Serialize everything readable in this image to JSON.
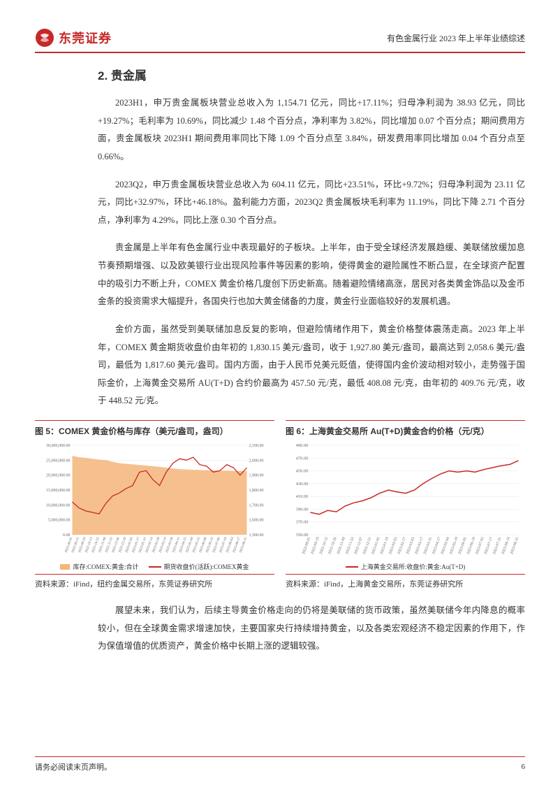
{
  "header": {
    "logo_text": "东莞证券",
    "right_text": "有色金属行业 2023 年上半年业绩综述"
  },
  "section": {
    "number": "2.",
    "title": "贵金属"
  },
  "paragraphs": {
    "p1": "2023H1，申万贵金属板块营业总收入为 1,154.71 亿元，同比+17.11%；归母净利润为 38.93 亿元，同比+19.27%；毛利率为 10.69%，同比减少 1.48 个百分点，净利率为 3.82%，同比增加 0.07 个百分点；期间费用方面，贵金属板块 2023H1 期间费用率同比下降 1.09 个百分点至 3.84%，研发费用率同比增加 0.04 个百分点至 0.66%。",
    "p2": "2023Q2，申万贵金属板块营业总收入为 604.11 亿元，同比+23.51%，环比+9.72%；归母净利润为 23.11 亿元，同比+32.97%，环比+46.18%。盈利能力方面，2023Q2 贵金属板块毛利率为 11.19%，同比下降 2.71 个百分点，净利率为 4.29%，同比上涨 0.30 个百分点。",
    "p3": "贵金属是上半年有色金属行业中表现最好的子板块。上半年，由于受全球经济发展趋缓、美联储放缓加息节奏预期增强、以及欧美银行业出现风险事件等因素的影响，使得黄金的避险属性不断凸显，在全球资产配置中的吸引力不断上升，COMEX 黄金价格几度创下历史新高。随着避险情绪高涨，居民对各类黄金饰品以及金币金条的投资需求大幅提升，各国央行也加大黄金储备的力度，黄金行业面临较好的发展机遇。",
    "p4": "金价方面，虽然受到美联储加息反复的影响，但避险情绪作用下，黄金价格整体震荡走高。2023 年上半年，COMEX 黄金期货收盘价由年初的 1,830.15 美元/盎司，收于 1,927.80 美元/盎司，最高达到 2,058.6 美元/盎司，最低为 1,817.60 美元/盎司。国内方面，由于人民币兑美元贬值，使得国内金价波动相对较小，走势强于国际金价，上海黄金交易所 AU(T+D) 合约价最高为 457.50 元/克，最低 408.08 元/克，由年初的 409.76 元/克，收于 448.52 元/克。",
    "p5": "展望未来，我们认为，后续主导黄金价格走向的仍将是美联储的货币政策，虽然美联储今年内降息的概率较小，但在全球黄金需求增速加快，主要国家央行持续增持黄金，以及各类宏观经济不稳定因素的作用下，作为保值增值的优质资产，黄金价格中长期上涨的逻辑较强。"
  },
  "chart_left": {
    "type": "combo",
    "title": "图 5：COMEX 黄金价格与库存（美元/盎司，盎司）",
    "x_labels": [
      "2022-09-01",
      "2022-09-15",
      "2022-09-29",
      "2022-10-13",
      "2022-10-25",
      "2022-11-08",
      "2022-11-22",
      "2022-12-06",
      "2022-12-20",
      "2023-01-03",
      "2023-01-17",
      "2023-01-31",
      "2023-02-14",
      "2023-02-28",
      "2023-03-14",
      "2023-03-28",
      "2023-04-11",
      "2023-04-25",
      "2023-05-09",
      "2023-05-25",
      "2023-06-08",
      "2023-06-22",
      "2023-07-06",
      "2023-07-20",
      "2023-08-03",
      "2023-08-17",
      "2023-08-31"
    ],
    "left_axis": {
      "min": 0,
      "max": 30000000,
      "step": 5000000,
      "labels": [
        "0.00",
        "5,000,000.00",
        "10,000,000.00",
        "15,000,000.00",
        "20,000,000.00",
        "25,000,000.00",
        "30,000,000.00"
      ]
    },
    "right_axis": {
      "min": 1500,
      "max": 2100,
      "step": 100,
      "labels": [
        "1,500.00",
        "1,600.00",
        "1,700.00",
        "1,800.00",
        "1,900.00",
        "2,000.00",
        "2,100.00"
      ]
    },
    "inventory_color": "#f5b57a",
    "price_color": "#c62828",
    "grid_color": "#e5e5e5",
    "inventory_values": [
      26500000,
      26000000,
      25800000,
      25500000,
      25200000,
      25000000,
      24500000,
      24000000,
      23800000,
      23600000,
      23400000,
      23200000,
      23000000,
      22800000,
      22500000,
      22200000,
      22000000,
      21900000,
      21800000,
      21700000,
      21650000,
      21600000,
      21550000,
      21500000,
      21450000,
      21400000,
      21350000
    ],
    "price_values": [
      1720,
      1680,
      1660,
      1650,
      1640,
      1710,
      1760,
      1780,
      1810,
      1830,
      1920,
      1930,
      1870,
      1830,
      1920,
      1980,
      2010,
      2000,
      2020,
      1970,
      1960,
      1920,
      1930,
      1970,
      1950,
      1900,
      1950
    ],
    "legend": {
      "a": "库存:COMEX:黄金:合计",
      "b": "期货收盘价(活跃):COMEX黄金"
    },
    "source": "资料来源：iFind，纽约金属交易所，东莞证券研究所"
  },
  "chart_right": {
    "type": "line",
    "title": "图 6：上海黄金交易所 Au(T+D)黄金合约价格（元/克）",
    "x_labels": [
      "2022-09-01",
      "2022-09-19",
      "2022-10-12",
      "2022-10-26",
      "2022-11-09",
      "2022-11-23",
      "2022-12-07",
      "2022-12-21",
      "2023-01-05",
      "2023-01-19",
      "2023-02-03",
      "2023-02-17",
      "2023-03-03",
      "2023-03-17",
      "2023-03-31",
      "2023-04-17",
      "2023-05-04",
      "2023-05-19",
      "2023-06-05",
      "2023-06-19",
      "2023-07-03",
      "2023-07-17",
      "2023-07-31",
      "2023-08-14",
      "2023-08-31"
    ],
    "y_axis": {
      "min": 350,
      "max": 490,
      "step": 20,
      "labels": [
        "350.00",
        "370.00",
        "390.00",
        "410.00",
        "430.00",
        "450.00",
        "470.00",
        "490.00"
      ]
    },
    "line_color": "#c62828",
    "grid_color": "#e5e5e5",
    "values": [
      385,
      382,
      388,
      386,
      395,
      400,
      403,
      408,
      415,
      420,
      417,
      415,
      420,
      430,
      438,
      445,
      450,
      448,
      450,
      448,
      452,
      455,
      458,
      460,
      466
    ],
    "legend": "上海黄金交易所:收盘价:黄金:Au(T+D)",
    "source": "资料来源：iFind，上海黄金交易所，东莞证券研究所"
  },
  "footer": {
    "left": "请务必阅读末页声明。",
    "page": "6"
  },
  "colors": {
    "brand_red": "#c62828",
    "text": "#333333",
    "bg": "#ffffff"
  }
}
